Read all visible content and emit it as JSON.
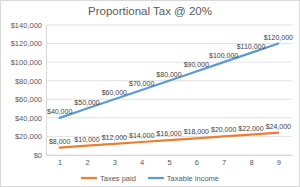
{
  "chart_data": {
    "type": "line",
    "title": "Proportional Tax @ 20%",
    "categories": [
      "1",
      "2",
      "3",
      "4",
      "5",
      "6",
      "7",
      "8",
      "9"
    ],
    "series": [
      {
        "name": "Taxes paid",
        "color": "#ed7d31",
        "values": [
          8000,
          10000,
          12000,
          14000,
          16000,
          18000,
          20000,
          22000,
          24000
        ],
        "value_labels": [
          "$8,000",
          "$10,000",
          "$12,000",
          "$14,000",
          "$16,000",
          "$18,000",
          "$20,000",
          "$22,000",
          "$24,000"
        ]
      },
      {
        "name": "Taxable income",
        "color": "#5b9bd5",
        "values": [
          40000,
          50000,
          60000,
          70000,
          80000,
          90000,
          100000,
          110000,
          120000
        ],
        "value_labels": [
          "$40,000",
          "$50,000",
          "$60,000",
          "$70,000",
          "$80,000",
          "$90,000",
          "$100,000",
          "$110,000",
          "$120,000"
        ]
      }
    ],
    "ylim": [
      0,
      140000
    ],
    "yticks": [
      {
        "value": 0,
        "label": "$0"
      },
      {
        "value": 20000,
        "label": "$20,000"
      },
      {
        "value": 40000,
        "label": "$40,000"
      },
      {
        "value": 60000,
        "label": "$60,000"
      },
      {
        "value": 80000,
        "label": "$80,000"
      },
      {
        "value": 100000,
        "label": "$100,000"
      },
      {
        "value": 120000,
        "label": "$120,000"
      },
      {
        "value": 140000,
        "label": "$140,000"
      }
    ],
    "grid": true,
    "data_labels": true,
    "legend": "bottom"
  }
}
